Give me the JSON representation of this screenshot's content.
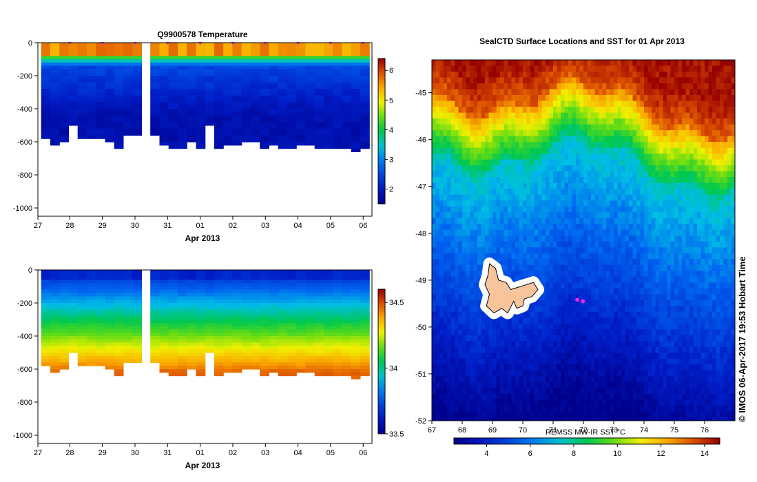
{
  "chart_data": [
    {
      "type": "heatmap",
      "title": "Q9900578  Temperature",
      "xlabel": "Apr 2013",
      "ylabel": "",
      "x_tick_labels": [
        "27",
        "28",
        "29",
        "30",
        "31",
        "01",
        "02",
        "03",
        "04",
        "05",
        "06"
      ],
      "y_ticks": [
        0,
        -200,
        -400,
        -600,
        -800,
        -1000
      ],
      "ylim": [
        -1050,
        0
      ],
      "colorbar": {
        "min": 1.5,
        "max": 6.4,
        "ticks": [
          2,
          3,
          4,
          5,
          6
        ]
      },
      "surface_marker_color": "#e040e0"
    },
    {
      "type": "heatmap",
      "title": "",
      "xlabel": "Apr 2013",
      "ylabel": "",
      "x_tick_labels": [
        "27",
        "28",
        "29",
        "30",
        "31",
        "01",
        "02",
        "03",
        "04",
        "05",
        "06"
      ],
      "y_ticks": [
        0,
        -200,
        -400,
        -600,
        -800,
        -1000
      ],
      "ylim": [
        -1050,
        0
      ],
      "colorbar": {
        "min": 33.5,
        "max": 34.6,
        "ticks": [
          33.5,
          34,
          34.5
        ]
      }
    },
    {
      "type": "heatmap",
      "title": "SealCTD Surface Locations and SST for 01 Apr 2013",
      "xlabel": "",
      "ylabel": "",
      "xlim": [
        67,
        77
      ],
      "ylim": [
        -52,
        -44.3
      ],
      "x_ticks": [
        67,
        68,
        69,
        70,
        71,
        72,
        73,
        74,
        75,
        76
      ],
      "y_ticks": [
        -45,
        -46,
        -47,
        -48,
        -49,
        -50,
        -51,
        -52
      ],
      "colorbar": {
        "label": "REMSS MW-IR SST °C",
        "min": 2.5,
        "max": 14.7,
        "ticks": [
          4,
          6,
          8,
          10,
          12,
          14
        ]
      },
      "island_color": "#f7c49c",
      "seal_positions": [
        [
          71.8,
          -49.42
        ],
        [
          71.98,
          -49.45
        ]
      ],
      "seal_color": "#ee22ee"
    }
  ],
  "credit": "© IMOS 06-Apr-2017 19:53 Hobart Time"
}
